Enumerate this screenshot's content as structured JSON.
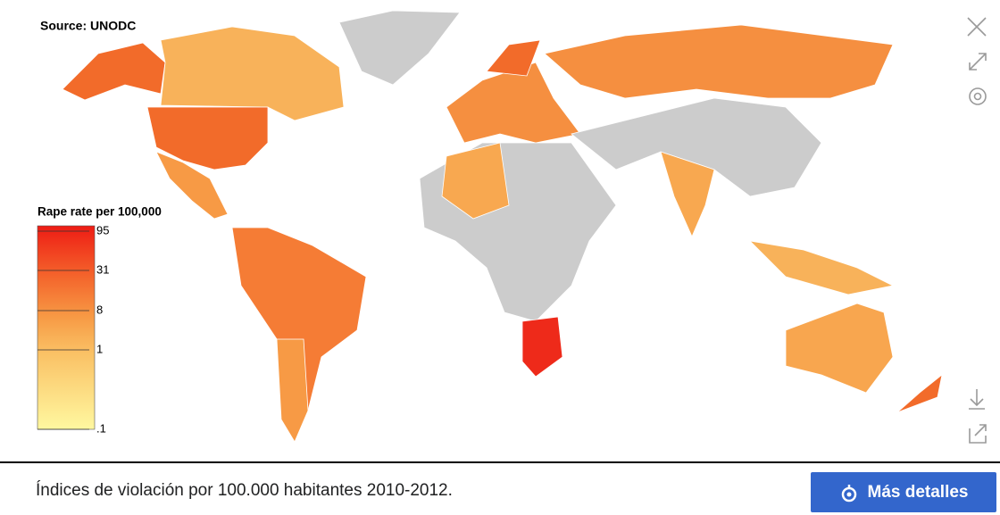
{
  "map": {
    "source": "Source: UNODC",
    "legend": {
      "title": "Rape rate per 100,000",
      "ticks": [
        95,
        31,
        8,
        1,
        {
          "value": 0.1,
          "label": ".1"
        }
      ]
    }
  },
  "footer": {
    "caption": "Índices de violación por 100.000 habitantes 2010-2012.",
    "button": "Más detalles"
  }
}
